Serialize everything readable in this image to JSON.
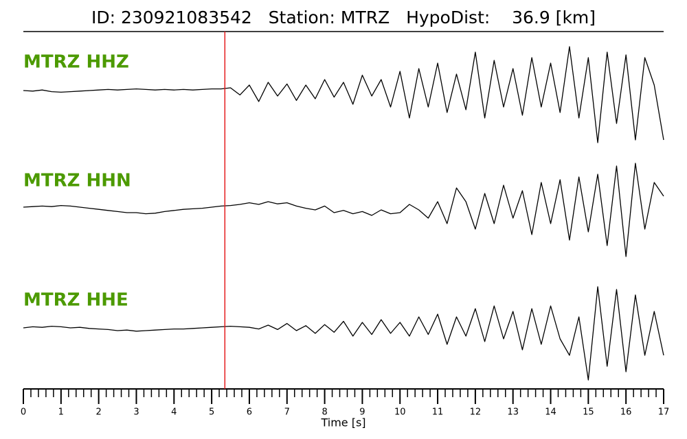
{
  "chart_data": {
    "type": "line",
    "title": "ID: 230921083542   Station: MTRZ   HypoDist:    36.9 [km]",
    "xlabel": "Time [s]",
    "xlim": [
      0,
      17
    ],
    "xticks": [
      0,
      1,
      2,
      3,
      4,
      5,
      6,
      7,
      8,
      9,
      10,
      11,
      12,
      13,
      14,
      15,
      16,
      17
    ],
    "xminor_step": 0.2,
    "ylim": [
      -1,
      1
    ],
    "pick_time": 5.35,
    "pick_color": "#e41a1c",
    "label_color": "#4c9a00",
    "x": [
      0,
      0.25,
      0.5,
      0.75,
      1,
      1.25,
      1.5,
      1.75,
      2,
      2.25,
      2.5,
      2.75,
      3,
      3.25,
      3.5,
      3.75,
      4,
      4.25,
      4.5,
      4.75,
      5,
      5.25,
      5.5,
      5.75,
      6,
      6.25,
      6.5,
      6.75,
      7,
      7.25,
      7.5,
      7.75,
      8,
      8.25,
      8.5,
      8.75,
      9,
      9.25,
      9.5,
      9.75,
      10,
      10.25,
      10.5,
      10.75,
      11,
      11.25,
      11.5,
      11.75,
      12,
      12.25,
      12.5,
      12.75,
      13,
      13.25,
      13.5,
      13.75,
      14,
      14.25,
      14.5,
      14.75,
      15,
      15.25,
      15.5,
      15.75,
      16,
      16.25,
      16.5,
      16.75,
      17
    ],
    "series": [
      {
        "name": "MTRZ HHZ",
        "color": "#000000",
        "values": [
          0,
          -0.01,
          0.01,
          -0.02,
          -0.03,
          -0.02,
          -0.01,
          0,
          0.01,
          0.02,
          0.01,
          0.02,
          0.03,
          0.02,
          0.01,
          0.02,
          0.01,
          0.02,
          0.01,
          0.02,
          0.03,
          0.03,
          0.05,
          -0.08,
          0.1,
          -0.2,
          0.15,
          -0.1,
          0.12,
          -0.18,
          0.1,
          -0.15,
          0.2,
          -0.12,
          0.15,
          -0.25,
          0.28,
          -0.1,
          0.2,
          -0.3,
          0.35,
          -0.5,
          0.4,
          -0.3,
          0.5,
          -0.4,
          0.3,
          -0.35,
          0.7,
          -0.5,
          0.55,
          -0.3,
          0.4,
          -0.45,
          0.6,
          -0.3,
          0.5,
          -0.4,
          0.8,
          -0.5,
          0.6,
          -0.95,
          0.7,
          -0.6,
          0.65,
          -0.9,
          0.6,
          0.1,
          -0.9
        ]
      },
      {
        "name": "MTRZ HHN",
        "color": "#000000",
        "values": [
          0,
          0.01,
          0.02,
          0.01,
          0.03,
          0.02,
          0,
          -0.02,
          -0.04,
          -0.06,
          -0.08,
          -0.1,
          -0.1,
          -0.12,
          -0.11,
          -0.08,
          -0.06,
          -0.04,
          -0.03,
          -0.02,
          0,
          0.02,
          0.03,
          0.05,
          0.08,
          0.05,
          0.1,
          0.06,
          0.08,
          0.02,
          -0.02,
          -0.05,
          0.02,
          -0.1,
          -0.06,
          -0.12,
          -0.08,
          -0.15,
          -0.05,
          -0.12,
          -0.1,
          0.05,
          -0.05,
          -0.2,
          0.1,
          -0.3,
          0.35,
          0.1,
          -0.4,
          0.25,
          -0.3,
          0.4,
          -0.2,
          0.3,
          -0.5,
          0.45,
          -0.3,
          0.5,
          -0.6,
          0.55,
          -0.45,
          0.6,
          -0.7,
          0.75,
          -0.9,
          0.8,
          -0.4,
          0.45,
          0.2
        ]
      },
      {
        "name": "MTRZ HHE",
        "color": "#000000",
        "values": [
          0,
          0.02,
          0.01,
          0.03,
          0.02,
          0,
          0.01,
          -0.01,
          -0.02,
          -0.03,
          -0.05,
          -0.04,
          -0.06,
          -0.05,
          -0.04,
          -0.03,
          -0.02,
          -0.02,
          -0.01,
          0,
          0.01,
          0.02,
          0.03,
          0.02,
          0.01,
          -0.02,
          0.05,
          -0.03,
          0.08,
          -0.05,
          0.04,
          -0.1,
          0.06,
          -0.08,
          0.12,
          -0.15,
          0.1,
          -0.12,
          0.15,
          -0.1,
          0.1,
          -0.15,
          0.2,
          -0.12,
          0.25,
          -0.3,
          0.2,
          -0.15,
          0.35,
          -0.25,
          0.4,
          -0.2,
          0.3,
          -0.4,
          0.35,
          -0.3,
          0.4,
          -0.2,
          -0.5,
          0.2,
          -0.95,
          0.75,
          -0.7,
          0.7,
          -0.8,
          0.6,
          -0.5,
          0.3,
          -0.5
        ]
      }
    ]
  }
}
